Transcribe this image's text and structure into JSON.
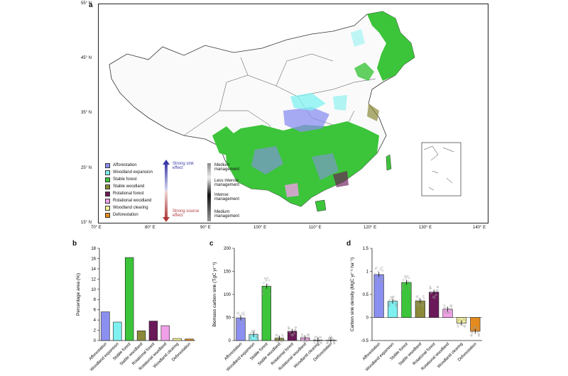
{
  "panels": {
    "a": "a",
    "b": "b",
    "c": "c",
    "d": "d"
  },
  "map": {
    "lat_ticks": [
      "55° N",
      "45° N",
      "35° N",
      "25° N",
      "15° N"
    ],
    "lon_ticks": [
      "70° E",
      "80° E",
      "90° E",
      "100° E",
      "110° E",
      "120° E",
      "130° E",
      "140° E"
    ],
    "legend": [
      {
        "label": "Afforestation",
        "color": "#8a8ff0"
      },
      {
        "label": "Woodland expansion",
        "color": "#7ff0f0"
      },
      {
        "label": "Stable forest",
        "color": "#3cc43a"
      },
      {
        "label": "Stable woodland",
        "color": "#8a8a3a"
      },
      {
        "label": "Rotational forest",
        "color": "#6a1a58"
      },
      {
        "label": "Rotational woodland",
        "color": "#f0a0e8"
      },
      {
        "label": "Woodland clearing",
        "color": "#f3f39a"
      },
      {
        "label": "Deforestation",
        "color": "#e58a1e"
      }
    ],
    "sink_label": "Strong sink effect",
    "source_label": "Strong source effect",
    "intensity": [
      "Medium management",
      "Less intense management",
      "Intense management",
      "Medium management"
    ]
  },
  "chart_data": [
    {
      "type": "bar",
      "categories": [
        "Afforestation",
        "Woodland expansion",
        "Stable forest",
        "Stable woodland",
        "Rotational forest",
        "Rotational woodland",
        "Woodland clearing",
        "Deforestation"
      ],
      "values": [
        5.6,
        3.6,
        16.2,
        1.9,
        3.8,
        2.9,
        0.4,
        0.3
      ],
      "ylabel": "Percentage area (%)",
      "ylim": [
        0,
        18
      ],
      "yticks": [
        "0",
        "2",
        "4",
        "6",
        "8",
        "10",
        "12",
        "14",
        "16",
        "18"
      ]
    },
    {
      "type": "bar",
      "categories": [
        "Afforestation",
        "Woodland expansion",
        "Stable forest",
        "Stable woodland",
        "Rotational forest",
        "Rotational woodland",
        "Woodland clearing",
        "Deforestation"
      ],
      "values": [
        49,
        13,
        118,
        5,
        20,
        6,
        1,
        1
      ],
      "ylabel": "Biomass carbon sink (TgC yr⁻¹)",
      "ylim": [
        0,
        200
      ],
      "yticks": [
        "0",
        "50",
        "100",
        "150",
        "200"
      ]
    },
    {
      "type": "bar",
      "categories": [
        "Afforestation",
        "Woodland expansion",
        "Stable forest",
        "Stable woodland",
        "Rotational forest",
        "Rotational woodland",
        "Woodland clearing",
        "Deforestation"
      ],
      "values": [
        0.93,
        0.35,
        0.76,
        0.36,
        0.55,
        0.18,
        -0.12,
        -0.3
      ],
      "ylabel": "Carbon sink density (MgC yr⁻¹ ha⁻¹)",
      "ylim": [
        -0.5,
        1.5
      ],
      "yticks": [
        "-0.5",
        "0",
        "0.5",
        "1",
        "1.5"
      ]
    }
  ]
}
